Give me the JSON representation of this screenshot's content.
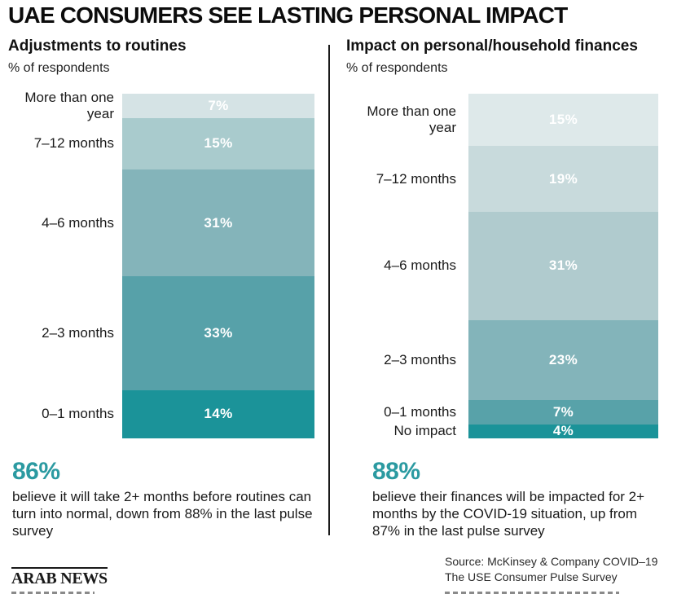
{
  "title": "UAE CONSUMERS SEE LASTING PERSONAL IMPACT",
  "accent_color": "#2b9aa1",
  "charts": [
    {
      "title": "Adjustments to routines",
      "subtitle": "% of respondents",
      "segments": [
        {
          "label": "More than one\nyear",
          "value": 7,
          "color": "#d5e3e5"
        },
        {
          "label": "7–12 months",
          "value": 15,
          "color": "#a9cbcd"
        },
        {
          "label": "4–6 months",
          "value": 31,
          "color": "#84b4ba"
        },
        {
          "label": "2–3 months",
          "value": 33,
          "color": "#57a1a9"
        },
        {
          "label": "0–1 months",
          "value": 14,
          "color": "#1b9399"
        }
      ],
      "stat": {
        "value": "86%",
        "text": "believe it will take 2+ months before routines can turn into normal, down from 88% in the last pulse survey"
      }
    },
    {
      "title": "Impact on personal/household finances",
      "subtitle": "% of respondents",
      "segments": [
        {
          "label": "More than one\nyear",
          "value": 15,
          "color": "#dee9ea"
        },
        {
          "label": "7–12 months",
          "value": 19,
          "color": "#c8dadc"
        },
        {
          "label": "4–6 months",
          "value": 31,
          "color": "#b0cbce"
        },
        {
          "label": "2–3 months",
          "value": 23,
          "color": "#83b4ba"
        },
        {
          "label": "0–1 months",
          "value": 7,
          "color": "#58a2a9"
        },
        {
          "label": "No impact",
          "value": 4,
          "color": "#1b9399"
        }
      ],
      "stat": {
        "value": "88%",
        "text": "believe their finances will be impacted for 2+ months by the COVID-19 situation, up from 87% in the last pulse survey"
      }
    }
  ],
  "footer": {
    "logo": "ARAB NEWS",
    "source_line1": "Source: McKinsey & Company COVID–19",
    "source_line2": "The USE Consumer Pulse Survey"
  },
  "chart_data": [
    {
      "type": "bar",
      "stacked": true,
      "orientation": "vertical-stacked-single-column",
      "title": "Adjustments to routines",
      "ylabel": "% of respondents",
      "categories": [
        "More than one year",
        "7–12 months",
        "4–6 months",
        "2–3 months",
        "0–1 months"
      ],
      "values": [
        7,
        15,
        31,
        33,
        14
      ],
      "value_labels": [
        "7%",
        "15%",
        "31%",
        "33%",
        "14%"
      ],
      "colors": [
        "#d5e3e5",
        "#a9cbcd",
        "#84b4ba",
        "#57a1a9",
        "#1b9399"
      ],
      "annotation": "86% believe it will take 2+ months before routines can turn into normal, down from 88% in the last pulse survey",
      "legend_position": "none",
      "grid": false
    },
    {
      "type": "bar",
      "stacked": true,
      "orientation": "vertical-stacked-single-column",
      "title": "Impact on personal/household finances",
      "ylabel": "% of respondents",
      "categories": [
        "More than one year",
        "7–12 months",
        "4–6 months",
        "2–3 months",
        "0–1 months",
        "No impact"
      ],
      "values": [
        15,
        19,
        31,
        23,
        7,
        4
      ],
      "value_labels": [
        "15%",
        "19%",
        "31%",
        "23%",
        "7%",
        "4%"
      ],
      "colors": [
        "#dee9ea",
        "#c8dadc",
        "#b0cbce",
        "#83b4ba",
        "#58a2a9",
        "#1b9399"
      ],
      "annotation": "88% believe their finances will be impacted for 2+ months by the COVID-19 situation, up from 87% in the last pulse survey",
      "legend_position": "none",
      "grid": false
    }
  ]
}
